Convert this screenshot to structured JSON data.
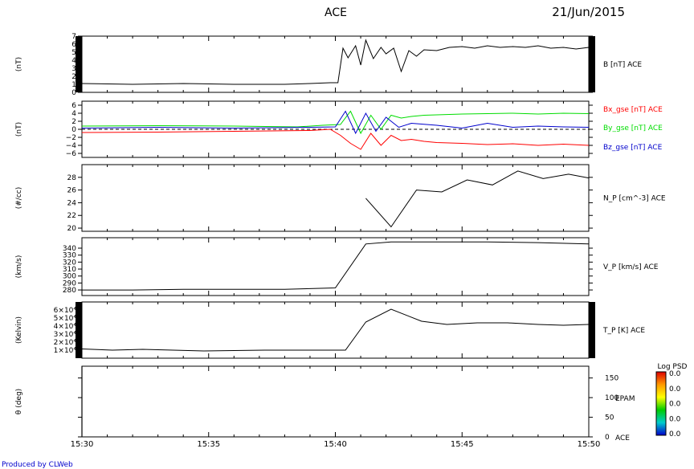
{
  "header": {
    "title": "ACE",
    "date": "21/Jun/2015"
  },
  "footer": {
    "produced_by": "Produced by CLWeb"
  },
  "time_axis": {
    "ticks": [
      "15:30",
      "15:35",
      "15:40",
      "15:45",
      "15:50"
    ]
  },
  "colorbar": {
    "title": "Log PSD",
    "tick_labels": [
      "0.0",
      "0.0",
      "0.0",
      "0.0",
      "0.0"
    ],
    "colors": [
      "#0000cc",
      "#00cccc",
      "#00cc00",
      "#ffff00",
      "#ff9900",
      "#dd0000"
    ]
  },
  "colors": {
    "series_red": "#ff0000",
    "series_green": "#00dd00",
    "series_blue": "#0000cc",
    "text_blue": "#0000cc"
  },
  "chart_data": [
    {
      "type": "line",
      "panel": "B",
      "ylabel": "(nT)",
      "ylim": [
        0,
        7
      ],
      "yticks": [
        "0",
        "1",
        "2",
        "3",
        "4",
        "5",
        "6",
        "7"
      ],
      "right_label": "B [nT] ACE",
      "series": [
        {
          "name": "B [nT] ACE",
          "color": "#000000",
          "x": [
            0,
            2,
            4,
            6,
            8,
            9,
            9.8,
            10.1,
            10.3,
            10.5,
            10.8,
            11,
            11.2,
            11.5,
            11.8,
            12,
            12.3,
            12.6,
            12.9,
            13.2,
            13.5,
            14,
            14.5,
            15,
            15.5,
            16,
            16.5,
            17,
            17.5,
            18,
            18.5,
            19,
            19.5,
            20
          ],
          "values": [
            1.1,
            1.0,
            1.1,
            1.0,
            1.0,
            1.1,
            1.2,
            1.2,
            5.5,
            4.3,
            5.8,
            3.4,
            6.5,
            4.2,
            5.6,
            4.8,
            5.5,
            2.6,
            5.2,
            4.5,
            5.3,
            5.2,
            5.6,
            5.7,
            5.5,
            5.8,
            5.6,
            5.7,
            5.6,
            5.8,
            5.5,
            5.6,
            5.4,
            5.6
          ]
        }
      ]
    },
    {
      "type": "line",
      "panel": "B_gse",
      "ylabel": "(nT)",
      "ylim": [
        -7,
        7
      ],
      "yticks": [
        "−6",
        "−4",
        "−2",
        "0",
        "2",
        "4",
        "6"
      ],
      "series": [
        {
          "name": "Bx_gse [nT] ACE",
          "color": "#ff0000",
          "x": [
            0,
            3,
            6,
            9,
            9.8,
            10.2,
            10.6,
            11,
            11.4,
            11.8,
            12.2,
            12.6,
            13,
            13.5,
            14,
            15,
            16,
            17,
            18,
            19,
            20
          ],
          "values": [
            -0.8,
            -0.7,
            -0.5,
            -0.3,
            0.0,
            -1.5,
            -3.5,
            -5.0,
            -1.0,
            -4.0,
            -1.5,
            -2.8,
            -2.5,
            -3.0,
            -3.3,
            -3.5,
            -3.8,
            -3.6,
            -4.0,
            -3.7,
            -4.0
          ]
        },
        {
          "name": "By_gse [nT] ACE",
          "color": "#00dd00",
          "x": [
            0,
            3,
            6,
            8.5,
            9.5,
            10.2,
            10.6,
            11,
            11.4,
            11.8,
            12.2,
            12.6,
            13,
            13.5,
            14,
            15,
            16,
            17,
            18,
            19,
            20
          ],
          "values": [
            0.8,
            0.9,
            0.8,
            0.6,
            1.0,
            1.2,
            4.5,
            -1.0,
            3.5,
            0.0,
            3.5,
            2.8,
            3.2,
            3.5,
            3.6,
            3.8,
            3.9,
            4.0,
            3.8,
            4.0,
            3.9
          ]
        },
        {
          "name": "Bz_gse [nT] ACE",
          "color": "#0000cc",
          "x": [
            0,
            3,
            6,
            9,
            10,
            10.4,
            10.8,
            11.2,
            11.6,
            12,
            12.5,
            13,
            14,
            15,
            16,
            17,
            18,
            19,
            20
          ],
          "values": [
            0.3,
            0.5,
            0.3,
            0.5,
            0.6,
            4.5,
            -1.0,
            4.0,
            -0.5,
            3.0,
            0.5,
            1.5,
            1.0,
            0.3,
            1.5,
            0.5,
            0.8,
            0.6,
            0.5
          ]
        }
      ]
    },
    {
      "type": "line",
      "panel": "N_P",
      "ylabel": "(#/cc)",
      "ylim": [
        19.5,
        30
      ],
      "yticks": [
        "20",
        "22",
        "24",
        "26",
        "28"
      ],
      "right_label": "N_P [cm^-3] ACE",
      "series": [
        {
          "name": "N_P [cm^-3] ACE",
          "color": "#000000",
          "x": [
            11.2,
            12.2,
            13.2,
            14.2,
            15.2,
            16.2,
            17.2,
            18.2,
            19.2,
            20
          ],
          "values": [
            24.7,
            20.2,
            26.0,
            25.7,
            27.6,
            26.8,
            29.0,
            27.8,
            28.5,
            27.9
          ]
        }
      ]
    },
    {
      "type": "line",
      "panel": "V_P",
      "ylabel": "(km/s)",
      "ylim": [
        272,
        355
      ],
      "yticks": [
        "280",
        "290",
        "300",
        "310",
        "320",
        "330",
        "340"
      ],
      "right_label": "V_P [km/s] ACE",
      "series": [
        {
          "name": "V_P [km/s] ACE",
          "color": "#000000",
          "x": [
            0,
            2,
            4,
            6,
            8,
            10,
            11.2,
            12.2,
            14,
            16,
            18,
            20
          ],
          "values": [
            280,
            280,
            281,
            281,
            281,
            283,
            346,
            349,
            349,
            349,
            348,
            346
          ]
        }
      ]
    },
    {
      "type": "line",
      "panel": "T_P",
      "ylabel": "(Kelvin)",
      "ylim": [
        0,
        70000
      ],
      "yticks": [
        "1×10⁴",
        "2×10⁴",
        "3×10⁴",
        "4×10⁴",
        "5×10⁴",
        "6×10⁴"
      ],
      "right_label": "T_P [K] ACE",
      "series": [
        {
          "name": "T_P [K] ACE",
          "color": "#000000",
          "x": [
            0,
            1.2,
            2.4,
            3.6,
            4.8,
            6,
            7.2,
            8.4,
            9.6,
            10.4,
            11.2,
            12.2,
            13.4,
            14.4,
            15.6,
            16.8,
            18,
            19,
            20
          ],
          "values": [
            11500,
            10000,
            11000,
            10000,
            9000,
            9500,
            10000,
            10000,
            10000,
            10000,
            45000,
            61000,
            46000,
            42000,
            44000,
            44000,
            42000,
            41000,
            42000
          ]
        }
      ]
    },
    {
      "type": "heatmap",
      "panel": "EPAM",
      "ylabel": "θ (deg)",
      "ylim": [
        0,
        180
      ],
      "yticks": [
        "0",
        "50",
        "100",
        "150"
      ],
      "right_label_lines": [
        "EPAM",
        "ACE"
      ]
    }
  ]
}
